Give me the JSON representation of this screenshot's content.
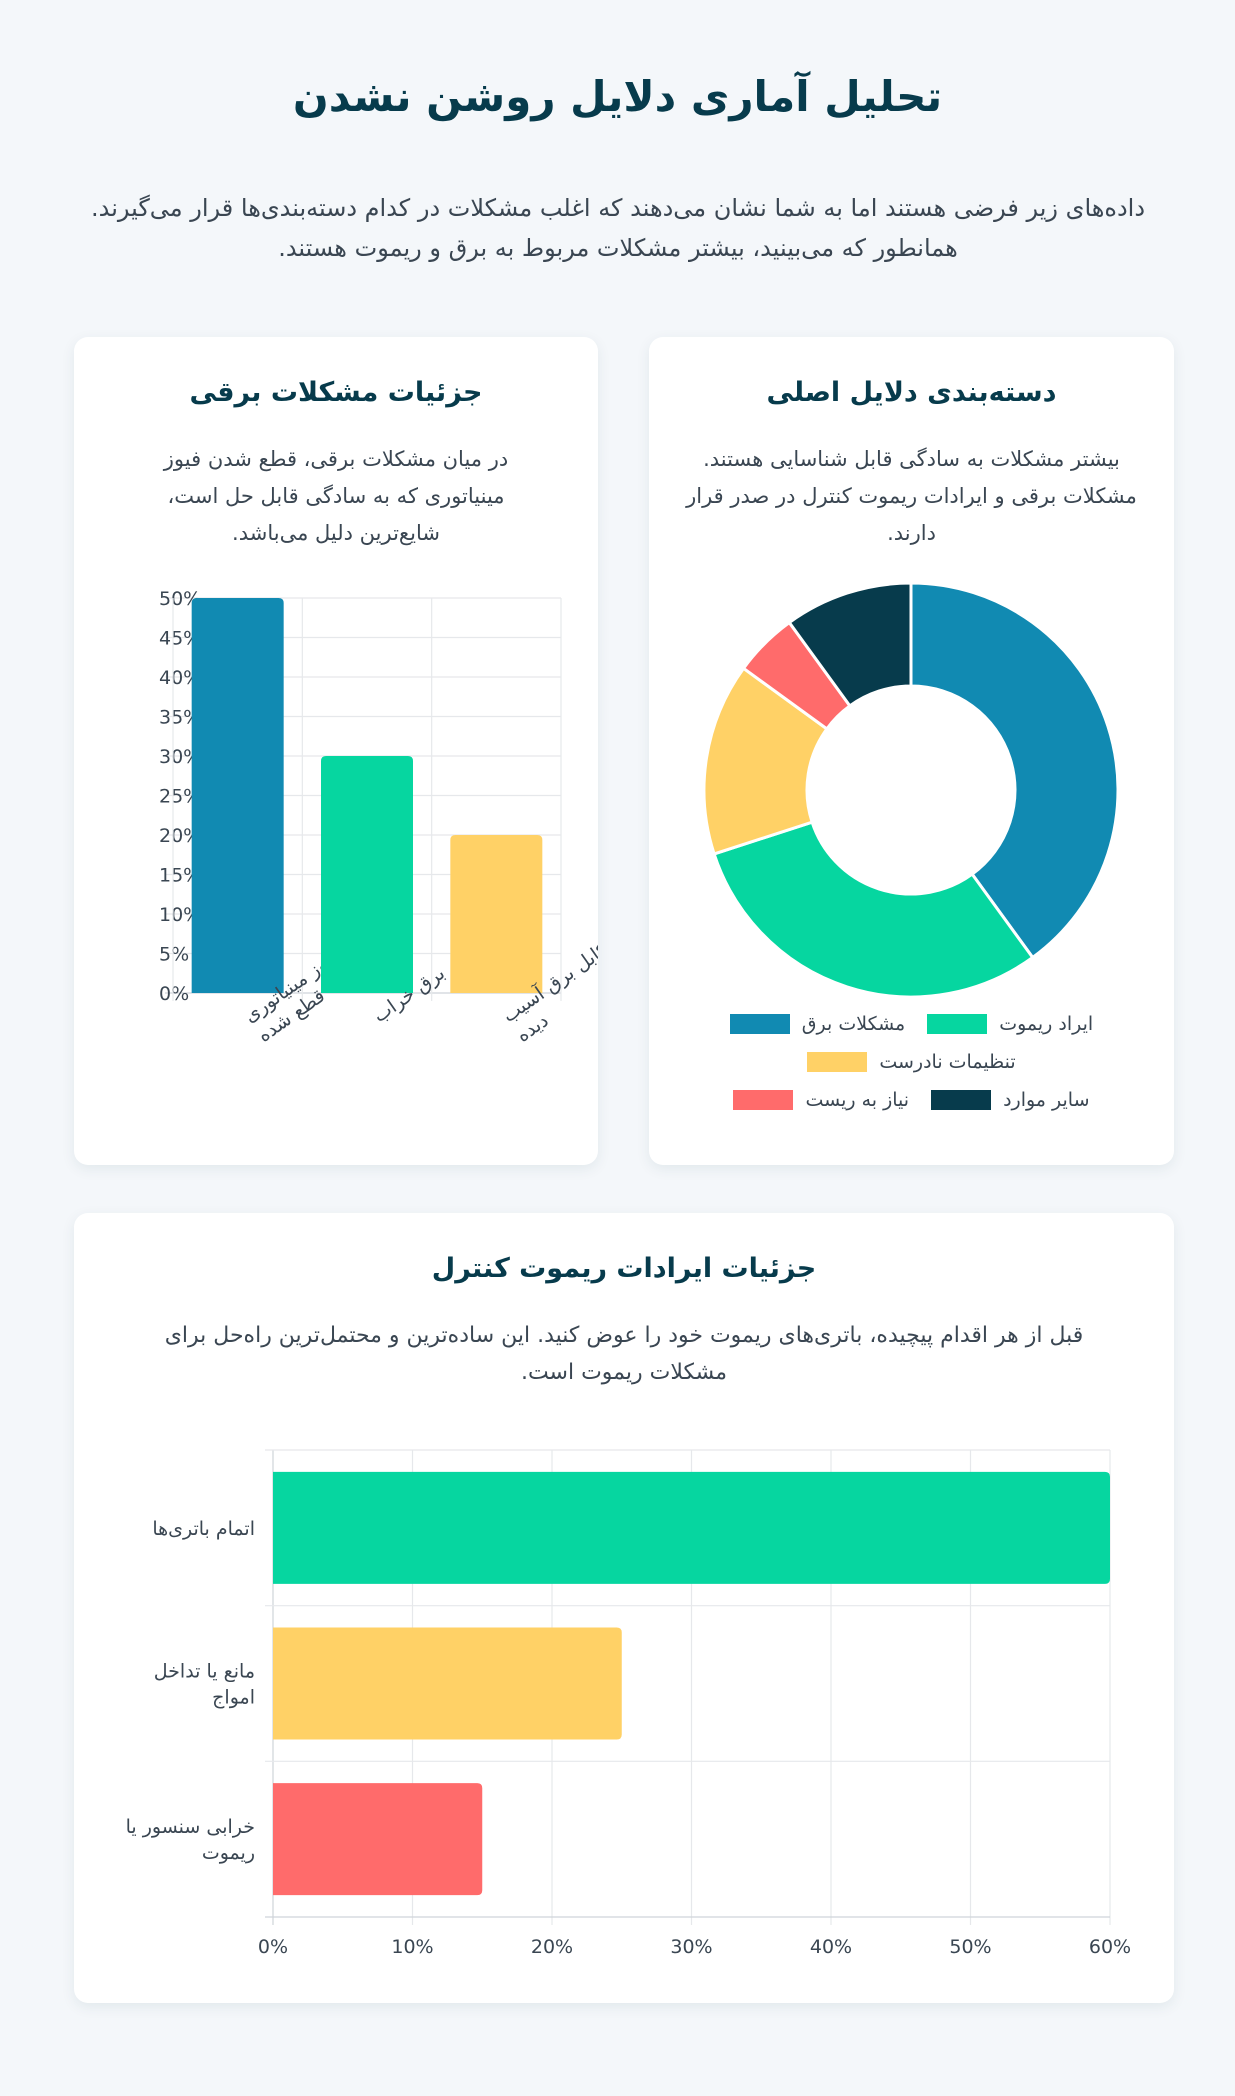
{
  "header": {
    "title": "تحلیل آماری دلایل روشن نشدن",
    "intro": "داده‌های زیر فرضی هستند اما به شما نشان می‌دهند که اغلب مشکلات در کدام دسته‌بندی‌ها قرار می‌گیرند. همانطور که می‌بینید، بیشتر مشکلات مربوط به برق و ریموت هستند."
  },
  "colors": {
    "blue": "#118ab2",
    "green": "#06d6a0",
    "yellow": "#ffd166",
    "red": "#ff6b6b",
    "dark": "#073b4c",
    "background": "#f4f7fa"
  },
  "cards": {
    "categories": {
      "title": "دسته‌بندی دلایل اصلی",
      "description": "بیشتر مشکلات به سادگی قابل شناسایی هستند. مشکلات برقی و ایرادات ریموت کنترل در صدر قرار دارند.",
      "legend": [
        {
          "label": "مشکلات برق",
          "color": "#118ab2"
        },
        {
          "label": "ایراد ریموت",
          "color": "#06d6a0"
        },
        {
          "label": "تنظیمات نادرست",
          "color": "#ffd166"
        },
        {
          "label": "سایر موارد",
          "color": "#073b4c"
        },
        {
          "label": "نیاز به ریست",
          "color": "#ff6b6b"
        }
      ]
    },
    "electrical": {
      "title": "جزئیات مشکلات برقی",
      "description": "در میان مشکلات برقی، قطع شدن فیوز مینیاتوری که به سادگی قابل حل است، شایع‌ترین دلیل می‌باشد.",
      "y_ticks": [
        "50%",
        "45%",
        "40%",
        "35%",
        "30%",
        "25%",
        "20%",
        "15%",
        "10%",
        "5%",
        "0%"
      ],
      "x_labels": [
        [
          "فیوز مینیاتوری",
          "قطع شده"
        ],
        [
          "پریز برق خراب"
        ],
        [
          "کابل برق آسیب",
          "دیده"
        ]
      ]
    },
    "remote": {
      "title": "جزئیات ایرادات ریموت کنترل",
      "description": "قبل از هر اقدام پیچیده، باتری‌های ریموت خود را عوض کنید. این ساده‌ترین و محتمل‌ترین راه‌حل برای مشکلات ریموت است.",
      "x_ticks": [
        "0%",
        "10%",
        "20%",
        "30%",
        "40%",
        "50%",
        "60%"
      ],
      "y_labels": [
        [
          "اتمام باتری‌ها"
        ],
        [
          "مانع یا تداخل",
          "امواج"
        ],
        [
          "خرابی سنسور یا",
          "ریموت"
        ]
      ]
    }
  },
  "chart_data": [
    {
      "type": "pie",
      "title": "دسته‌بندی دلایل اصلی",
      "variant": "doughnut",
      "categories": [
        "مشکلات برق",
        "ایراد ریموت",
        "تنظیمات نادرست",
        "نیاز به ریست",
        "سایر موارد"
      ],
      "values": [
        40,
        30,
        15,
        5,
        10
      ],
      "colors": [
        "#118ab2",
        "#06d6a0",
        "#ffd166",
        "#ff6b6b",
        "#073b4c"
      ],
      "legend_position": "bottom"
    },
    {
      "type": "bar",
      "title": "جزئیات مشکلات برقی",
      "categories": [
        "فیوز مینیاتوری قطع شده",
        "پریز برق خراب",
        "کابل برق آسیب دیده"
      ],
      "values": [
        50,
        30,
        20
      ],
      "colors": [
        "#118ab2",
        "#06d6a0",
        "#ffd166"
      ],
      "xlabel": "",
      "ylabel": "",
      "ylim": [
        0,
        50
      ],
      "y_unit": "%",
      "grid": true
    },
    {
      "type": "bar",
      "orientation": "horizontal",
      "title": "جزئیات ایرادات ریموت کنترل",
      "categories": [
        "اتمام باتری‌ها",
        "مانع یا تداخل امواج",
        "خرابی سنسور یا ریموت"
      ],
      "values": [
        60,
        25,
        15
      ],
      "colors": [
        "#06d6a0",
        "#ffd166",
        "#ff6b6b"
      ],
      "xlabel": "",
      "ylabel": "",
      "xlim": [
        0,
        60
      ],
      "x_unit": "%",
      "grid": true
    }
  ]
}
